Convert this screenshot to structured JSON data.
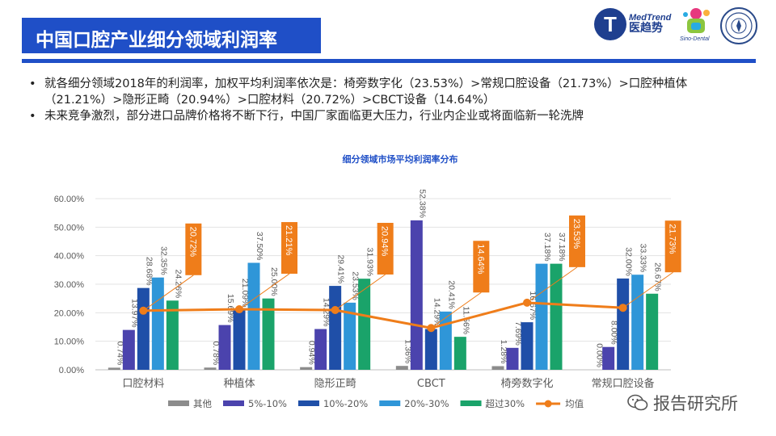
{
  "header": {
    "title": "中国口腔产业细分领域利润率",
    "logo_medtrend_en": "MedTrend",
    "logo_medtrend_cn": "医趋势",
    "logo_medtrend_letter": "T",
    "logo_sino": "Sino-Dental"
  },
  "bullets": [
    "就各细分领域2018年的利润率，加权平均利润率依次是：椅旁数字化（23.53%）>常规口腔设备（21.73%）>口腔种植体（21.21%）>隐形正畸（20.94%）>口腔材料（20.72%）>CBCT设备（14.64%）",
    "未来竞争激烈，部分进口品牌价格将不断下行，中国厂家面临更大压力，行业内企业或将面临新一轮洗牌"
  ],
  "watermark": "报告研究所",
  "colors": {
    "brand_blue": "#1f4fc7",
    "other": "#8c8c8c",
    "s5_10": "#4b43ad",
    "s10_20": "#1f4fa8",
    "s20_30": "#2f96d8",
    "over30": "#1aa36a",
    "mean": "#ef7d1a"
  },
  "chart_data": {
    "type": "bar",
    "title": "细分领域市场平均利润率分布",
    "categories": [
      "口腔材料",
      "种植体",
      "隐形正畸",
      "CBCT",
      "椅旁数字化",
      "常规口腔设备"
    ],
    "series": [
      {
        "name": "其他",
        "values": [
          0.74,
          0.78,
          0.94,
          1.36,
          1.28,
          0.0
        ],
        "labels": [
          "0.74%",
          "0.78%",
          "0.94%",
          "1.36%",
          "1.28%",
          "0.00%"
        ]
      },
      {
        "name": "5%-10%",
        "values": [
          13.97,
          15.69,
          14.29,
          52.38,
          7.69,
          8.0
        ],
        "labels": [
          "13.97%",
          "15.69%",
          "14.29%",
          "52.38%",
          "7.69%",
          "8.00%"
        ]
      },
      {
        "name": "10%-20%",
        "values": [
          28.68,
          21.09,
          29.41,
          14.29,
          16.67,
          32.0
        ],
        "labels": [
          "28.68%",
          "21.09%",
          "29.41%",
          "14.29%",
          "16.67%",
          "32.00%"
        ]
      },
      {
        "name": "20%-30%",
        "values": [
          32.35,
          37.5,
          23.53,
          20.41,
          37.18,
          33.33
        ],
        "labels": [
          "32.35%",
          "37.50%",
          "23.53%",
          "20.41%",
          "37.18%",
          "33.33%"
        ]
      },
      {
        "name": "超过30%",
        "values": [
          24.26,
          25.0,
          31.93,
          11.56,
          37.18,
          26.67
        ],
        "labels": [
          "24.26%",
          "25.00%",
          "31.93%",
          "11.56%",
          "37.18%",
          "26.67%"
        ]
      }
    ],
    "mean": {
      "name": "均值",
      "values": [
        20.72,
        21.21,
        20.94,
        14.64,
        23.53,
        21.73
      ],
      "labels": [
        "20.72%",
        "21.21%",
        "20.94%",
        "14.64%",
        "23.53%",
        "21.73%"
      ]
    },
    "ylim": [
      0,
      60
    ],
    "yticks": [
      "0.00%",
      "10.00%",
      "20.00%",
      "30.00%",
      "40.00%",
      "50.00%",
      "60.00%"
    ],
    "xlabel": "",
    "ylabel": "",
    "legend_position": "bottom"
  }
}
